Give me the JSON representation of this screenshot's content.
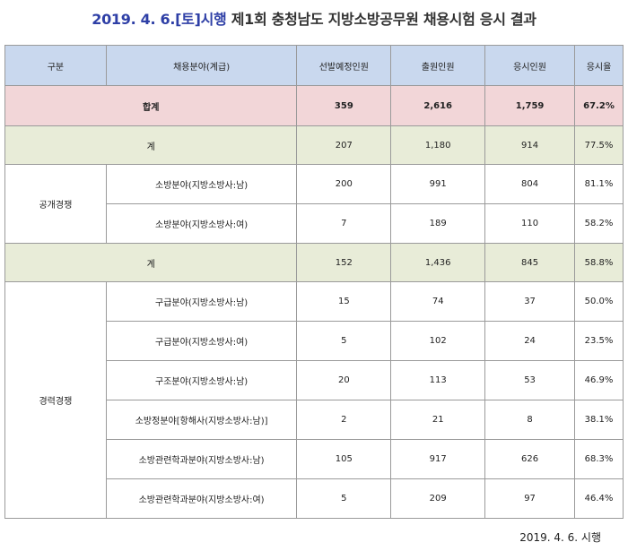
{
  "title": {
    "date_part": "2019. 4. 6.[토]시행",
    "rest_part": "제1회 충청남도 지방소방공무원 채용시험 응시 결과"
  },
  "table": {
    "headers": [
      "구분",
      "채용분야(계급)",
      "선발예정인원",
      "출원인원",
      "응시인원",
      "응시율"
    ],
    "total": {
      "label": "합계",
      "selected": "359",
      "applied": "2,616",
      "attended": "1,759",
      "rate": "67.2%"
    },
    "open": {
      "group_label": "공개경쟁",
      "subtotal": {
        "label": "계",
        "selected": "207",
        "applied": "1,180",
        "attended": "914",
        "rate": "77.5%"
      },
      "rows": [
        {
          "field": "소방분야(지방소방사:남)",
          "selected": "200",
          "applied": "991",
          "attended": "804",
          "rate": "81.1%"
        },
        {
          "field": "소방분야(지방소방사:여)",
          "selected": "7",
          "applied": "189",
          "attended": "110",
          "rate": "58.2%"
        }
      ]
    },
    "career": {
      "group_label": "경력경쟁",
      "subtotal": {
        "label": "계",
        "selected": "152",
        "applied": "1,436",
        "attended": "845",
        "rate": "58.8%"
      },
      "rows": [
        {
          "field": "구급분야(지방소방사:남)",
          "selected": "15",
          "applied": "74",
          "attended": "37",
          "rate": "50.0%"
        },
        {
          "field": "구급분야(지방소방사:여)",
          "selected": "5",
          "applied": "102",
          "attended": "24",
          "rate": "23.5%"
        },
        {
          "field": "구조분야(지방소방사:남)",
          "selected": "20",
          "applied": "113",
          "attended": "53",
          "rate": "46.9%"
        },
        {
          "field": "소방정분야[항해사(지방소방사:남)]",
          "selected": "2",
          "applied": "21",
          "attended": "8",
          "rate": "38.1%"
        },
        {
          "field": "소방관련학과분야(지방소방사:남)",
          "selected": "105",
          "applied": "917",
          "attended": "626",
          "rate": "68.3%"
        },
        {
          "field": "소방관련학과분야(지방소방사:여)",
          "selected": "5",
          "applied": "209",
          "attended": "97",
          "rate": "46.4%"
        }
      ]
    }
  },
  "footer": "2019. 4. 6. 시행"
}
